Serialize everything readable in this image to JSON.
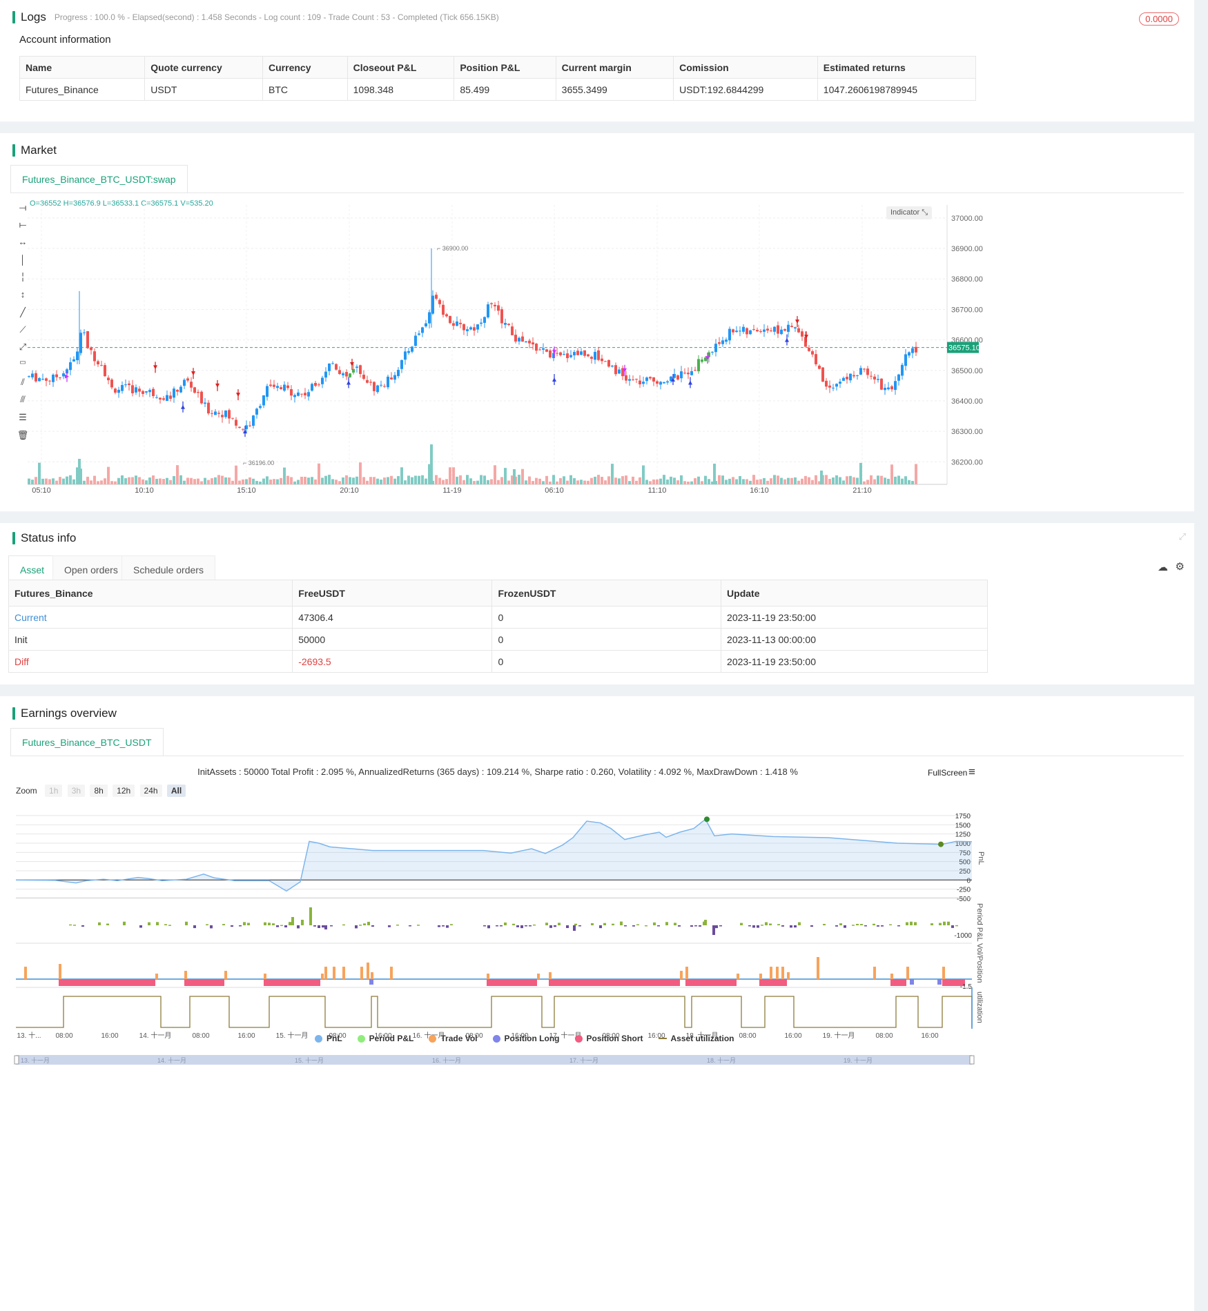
{
  "logs": {
    "title": "Logs",
    "status": "Progress : 100.0 % - Elapsed(second) : 1.458  Seconds - Log count : 109 - Trade Count : 53 - Completed (Tick 656.15KB)",
    "badge": "0.0000",
    "account_title": "Account information",
    "headers": [
      "Name",
      "Quote currency",
      "Currency",
      "Closeout P&L",
      "Position P&L",
      "Current margin",
      "Comission",
      "Estimated returns"
    ],
    "row": [
      "Futures_Binance",
      "USDT",
      "BTC",
      "1098.348",
      "85.499",
      "3655.3499",
      "USDT:192.6844299",
      "1047.2606198789945"
    ]
  },
  "market": {
    "title": "Market",
    "tab": "Futures_Binance_BTC_USDT:swap",
    "ohlc": "O=36552 H=36576.9 L=36533.1 C=36575.1 V=535.20",
    "indicator_btn": "Indicator",
    "price_ticks": [
      "37000.00",
      "36900.00",
      "36800.00",
      "36700.00",
      "36600.00",
      "36500.00",
      "36400.00",
      "36300.00",
      "36200.00"
    ],
    "last_price": "36575.10",
    "high_label": "36900.00",
    "low_label": "36196.00",
    "time_ticks": [
      "05:10",
      "10:10",
      "15:10",
      "20:10",
      "11-19",
      "06:10",
      "11:10",
      "16:10",
      "21:10"
    ],
    "colors": {
      "up": "#2196f3",
      "down": "#ef5350",
      "long_green": "#4caf50",
      "signal_purple": "#cc33ff",
      "signal_blue": "#3344dd",
      "signal_red": "#dd2222"
    }
  },
  "status": {
    "title": "Status info",
    "tabs": [
      "Asset",
      "Open orders",
      "Schedule orders"
    ],
    "headers": [
      "Futures_Binance",
      "FreeUSDT",
      "FrozenUSDT",
      "Update"
    ],
    "rows": [
      [
        "Current",
        "47306.4",
        "0",
        "2023-11-19 23:50:00"
      ],
      [
        "Init",
        "50000",
        "0",
        "2023-11-13 00:00:00"
      ],
      [
        "Diff",
        "-2693.5",
        "0",
        "2023-11-19 23:50:00"
      ]
    ]
  },
  "earnings": {
    "title": "Earnings overview",
    "tab": "Futures_Binance_BTC_USDT",
    "summary": "InitAssets : 50000 Total Profit : 2.095 %, AnnualizedReturns (365 days) : 109.214 %, Sharpe ratio : 0.260, Volatility : 4.092 %, MaxDrawDown : 1.418 %",
    "fullscreen": "FullScreen",
    "zoom_label": "Zoom",
    "zoom_buttons": [
      "1h",
      "3h",
      "8h",
      "12h",
      "24h",
      "All"
    ],
    "pnl_ticks": [
      "1750",
      "1500",
      "1250",
      "1000",
      "750",
      "500",
      "250",
      "0",
      "-250",
      "-500"
    ],
    "period_tick": "-1000",
    "vol_tick": "-1.5",
    "axis_names": [
      "PnL",
      "Period P&L",
      "Vol/Position",
      "utilization"
    ],
    "time_ticks": [
      "13. 十...",
      "08:00",
      "16:00",
      "14. 十一月",
      "08:00",
      "16:00",
      "15. 十一月",
      "08:00",
      "16:00",
      "16. 十一月",
      "08:00",
      "16:00",
      "17. 十一月",
      "08:00",
      "16:00",
      "18. 十一月",
      "08:00",
      "16:00",
      "19. 十一月",
      "08:00",
      "16:00"
    ],
    "navigator_ticks": [
      "13. 十一月",
      "14. 十一月",
      "15. 十一月",
      "16. 十一月",
      "17. 十一月",
      "18. 十一月",
      "19. 十一月"
    ],
    "legend": [
      {
        "name": "PnL",
        "color": "#7cb5ec"
      },
      {
        "name": "Period P&L",
        "color": "#90ed7d"
      },
      {
        "name": "Trade Vol",
        "color": "#f7a35c"
      },
      {
        "name": "Position Long",
        "color": "#8085e9"
      },
      {
        "name": "Position Short",
        "color": "#f15c80"
      },
      {
        "name": "Asset utilization",
        "color": "#8d7b3b"
      }
    ]
  }
}
